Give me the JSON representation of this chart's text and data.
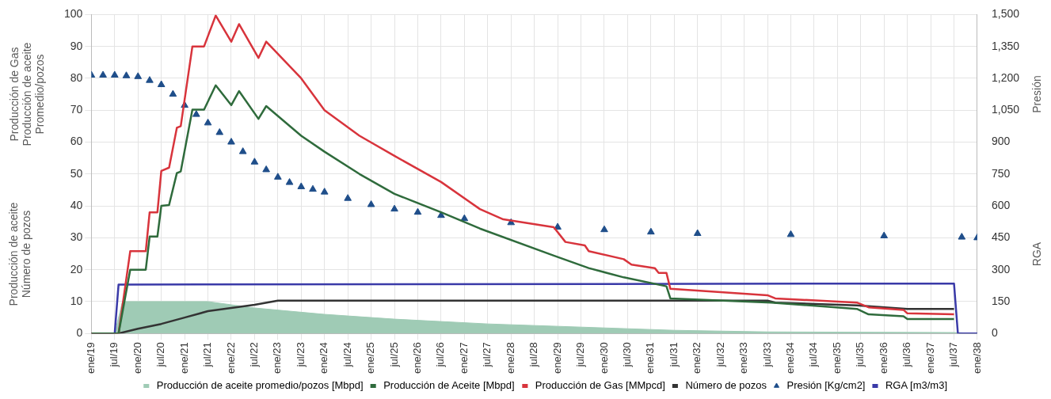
{
  "chart_data": {
    "type": "line",
    "ylabel": "Producción de Gas\nProducción de aceite\nPromedio/pozos\n\nProducción de aceite\nNúmero de pozos",
    "y2label": "Presión\n\nRGA",
    "xlim": [
      "2019-01",
      "2038-01"
    ],
    "xticks": [
      {
        "value": "2019-01",
        "label": "ene/19"
      },
      {
        "value": "2019-07",
        "label": "jul/19"
      },
      {
        "value": "2020-01",
        "label": "ene/20"
      },
      {
        "value": "2020-07",
        "label": "jul/20"
      },
      {
        "value": "2021-01",
        "label": "ene/21"
      },
      {
        "value": "2021-07",
        "label": "jul/21"
      },
      {
        "value": "2022-01",
        "label": "ene/22"
      },
      {
        "value": "2022-07",
        "label": "jul/22"
      },
      {
        "value": "2023-01",
        "label": "ene/23"
      },
      {
        "value": "2023-07",
        "label": "jul/23"
      },
      {
        "value": "2024-01",
        "label": "ene/24"
      },
      {
        "value": "2024-07",
        "label": "jul/24"
      },
      {
        "value": "2025-01",
        "label": "ene/25"
      },
      {
        "value": "2025-07",
        "label": "jul/25"
      },
      {
        "value": "2026-01",
        "label": "ene/26"
      },
      {
        "value": "2026-07",
        "label": "jul/26"
      },
      {
        "value": "2027-01",
        "label": "ene/27"
      },
      {
        "value": "2027-07",
        "label": "jul/27"
      },
      {
        "value": "2028-01",
        "label": "ene/28"
      },
      {
        "value": "2028-07",
        "label": "jul/28"
      },
      {
        "value": "2029-01",
        "label": "ene/29"
      },
      {
        "value": "2029-07",
        "label": "jul/29"
      },
      {
        "value": "2030-01",
        "label": "ene/30"
      },
      {
        "value": "2030-07",
        "label": "jul/30"
      },
      {
        "value": "2031-01",
        "label": "ene/31"
      },
      {
        "value": "2031-07",
        "label": "jul/31"
      },
      {
        "value": "2032-01",
        "label": "ene/32"
      },
      {
        "value": "2032-07",
        "label": "jul/32"
      },
      {
        "value": "2033-01",
        "label": "ene/33"
      },
      {
        "value": "2033-07",
        "label": "jul/33"
      },
      {
        "value": "2034-01",
        "label": "ene/34"
      },
      {
        "value": "2034-07",
        "label": "jul/34"
      },
      {
        "value": "2035-01",
        "label": "ene/35"
      },
      {
        "value": "2035-07",
        "label": "jul/35"
      },
      {
        "value": "2036-01",
        "label": "ene/36"
      },
      {
        "value": "2036-07",
        "label": "jul/36"
      },
      {
        "value": "2037-01",
        "label": "ene/37"
      },
      {
        "value": "2037-07",
        "label": "jul/37"
      },
      {
        "value": "2038-01",
        "label": "ene/38"
      }
    ],
    "ylim": [
      0,
      100
    ],
    "yticks": [
      0,
      10,
      20,
      30,
      40,
      50,
      60,
      70,
      80,
      90,
      100
    ],
    "y2lim": [
      0,
      1500
    ],
    "y2ticks": [
      0,
      {
        "value": 150,
        "label": "150"
      },
      {
        "value": 300,
        "label": "300"
      },
      {
        "value": 450,
        "label": "450"
      },
      {
        "value": 600,
        "label": "600"
      },
      {
        "value": 750,
        "label": "750"
      },
      {
        "value": 900,
        "label": "900"
      },
      {
        "value": 1050,
        "label": "1,050"
      },
      {
        "value": 1200,
        "label": "1,200"
      },
      {
        "value": 1350,
        "label": "1,350"
      },
      {
        "value": 1500,
        "label": "1,500"
      }
    ],
    "grid": true,
    "legend": "bottom",
    "series": [
      {
        "name": "Producción de aceite promedio/pozos [Mbpd]",
        "type": "area",
        "color": "#9fcbb5",
        "x": [
          "2019-07",
          "2019-09",
          "2021-07",
          "2022-07",
          "2024-01",
          "2025-07",
          "2027-07",
          "2029-07",
          "2031-07",
          "2033-07",
          "2037-07",
          "2038-01"
        ],
        "values": [
          0,
          10,
          10,
          8,
          6,
          4.5,
          3,
          2,
          1,
          0.5,
          0.3,
          0
        ]
      },
      {
        "name": "Producción de Aceite [Mbpd]",
        "type": "line",
        "color": "#2f6b3c",
        "x": [
          "2019-01",
          "2019-08",
          "2019-11",
          "2020-03",
          "2020-04",
          "2020-06",
          "2020-07",
          "2020-09",
          "2020-11",
          "2020-12",
          "2021-03",
          "2021-06",
          "2021-09",
          "2022-01",
          "2022-03",
          "2022-08",
          "2022-10",
          "2023-07",
          "2024-01",
          "2024-10",
          "2025-07",
          "2026-07",
          "2027-05",
          "2028-12",
          "2029-09",
          "2030-06",
          "2031-05",
          "2031-06",
          "2033-08",
          "2035-06",
          "2035-09",
          "2036-06",
          "2036-07",
          "2037-07"
        ],
        "values": [
          0,
          0,
          20,
          20,
          30.4,
          30.4,
          40,
          40.3,
          50.3,
          50.8,
          70.2,
          70.2,
          77.8,
          71.6,
          76,
          67.3,
          71.3,
          62,
          57,
          50,
          43.8,
          38,
          32.9,
          24.4,
          20.5,
          17.6,
          14.8,
          11,
          9.7,
          7.7,
          6,
          5.4,
          4.5,
          4.5
        ]
      },
      {
        "name": "Producción de Gas [MMpcd]",
        "type": "line",
        "color": "#d8343c",
        "x": [
          "2019-01",
          "2019-08",
          "2019-11",
          "2020-03",
          "2020-04",
          "2020-06",
          "2020-07",
          "2020-09",
          "2020-11",
          "2020-12",
          "2021-03",
          "2021-06",
          "2021-09",
          "2022-01",
          "2022-03",
          "2022-08",
          "2022-10",
          "2023-07",
          "2024-01",
          "2024-10",
          "2025-07",
          "2026-07",
          "2027-05",
          "2027-11",
          "2028-12",
          "2029-03",
          "2029-08",
          "2029-09",
          "2030-06",
          "2030-08",
          "2031-02",
          "2031-03",
          "2031-05",
          "2031-06",
          "2033-07",
          "2033-09",
          "2035-06",
          "2035-09",
          "2036-06",
          "2036-07",
          "2037-07"
        ],
        "values": [
          0,
          0,
          25.8,
          25.8,
          38,
          38,
          51,
          52,
          64.5,
          65,
          90,
          90,
          99.7,
          91.5,
          97,
          86.4,
          91.5,
          80,
          70,
          62,
          55.7,
          47.5,
          39,
          35.8,
          33.3,
          28.7,
          27.6,
          25.8,
          23.3,
          21.6,
          20.5,
          19,
          19,
          14,
          12,
          11,
          9.7,
          8.2,
          7.4,
          6.3,
          6
        ]
      },
      {
        "name": "Número de pozos",
        "type": "line",
        "color": "#333333",
        "x": [
          "2019-01",
          "2019-08",
          "2020-01",
          "2020-07",
          "2021-01",
          "2021-07",
          "2022-01",
          "2022-07",
          "2023-01",
          "2033-07",
          "2033-09",
          "2035-06",
          "2036-07",
          "2037-07"
        ],
        "values": [
          0,
          0,
          1.5,
          3,
          5,
          7,
          8,
          9,
          10.3,
          10.3,
          9.7,
          8.8,
          7.7,
          7.7
        ]
      },
      {
        "name": "Presión [Kg/cm2]",
        "type": "scatter",
        "axis": "y2",
        "marker": "triangle",
        "color": "#1f4e8a",
        "x": [
          "2019-01",
          "2019-04",
          "2019-07",
          "2019-10",
          "2020-01",
          "2020-04",
          "2020-07",
          "2020-10",
          "2021-01",
          "2021-04",
          "2021-07",
          "2021-10",
          "2022-01",
          "2022-04",
          "2022-07",
          "2022-10",
          "2023-01",
          "2023-04",
          "2023-07",
          "2023-10",
          "2024-01",
          "2024-07",
          "2025-01",
          "2025-07",
          "2026-01",
          "2026-07",
          "2027-01",
          "2028-01",
          "2029-01",
          "2030-01",
          "2031-01",
          "2032-01",
          "2034-01",
          "2036-01",
          "2037-09",
          "2038-01"
        ],
        "values": [
          1215,
          1215,
          1215,
          1212,
          1208,
          1190,
          1170,
          1125,
          1073,
          1030,
          990,
          945,
          900,
          855,
          806,
          770,
          735,
          710,
          690,
          678,
          665,
          635,
          606,
          585,
          570,
          555,
          540,
          521,
          500,
          488,
          477,
          470,
          465,
          459,
          453,
          450
        ]
      },
      {
        "name": "RGA [m3/m3]",
        "type": "line",
        "axis": "y2",
        "color": "#3a3aa8",
        "x": [
          "2019-01",
          "2019-07",
          "2019-08",
          "2037-07",
          "2037-08",
          "2038-01"
        ],
        "values": [
          0,
          0,
          230,
          235,
          0,
          0
        ]
      }
    ]
  }
}
